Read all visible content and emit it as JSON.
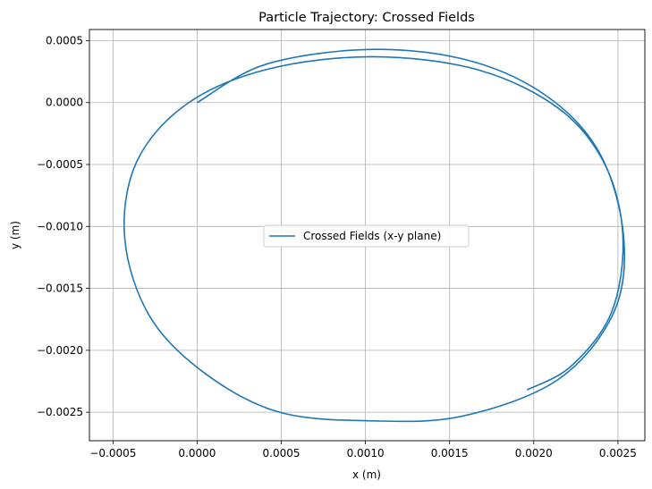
{
  "chart_data": {
    "type": "line",
    "title": "Particle Trajectory: Crossed Fields",
    "xlabel": "x (m)",
    "ylabel": "y (m)",
    "xlim": [
      -0.00064,
      0.00266
    ],
    "ylim": [
      -0.00273,
      0.00059
    ],
    "xticks": [
      -0.0005,
      0.0,
      0.0005,
      0.001,
      0.0015,
      0.002,
      0.0025
    ],
    "yticks": [
      0.0005,
      0.0,
      -0.0005,
      -0.001,
      -0.0015,
      -0.002,
      -0.0025
    ],
    "xtick_labels": [
      "−0.0005",
      "0.0000",
      "0.0005",
      "0.0010",
      "0.0015",
      "0.0020",
      "0.0025"
    ],
    "ytick_labels": [
      "0.0005",
      "0.0000",
      "−0.0005",
      "−0.0010",
      "−0.0015",
      "−0.0020",
      "−0.0025"
    ],
    "grid": true,
    "legend_position": "center",
    "series": [
      {
        "name": "Crossed Fields (x-y plane)",
        "color": "#1f77b4",
        "x": [
          0.0,
          0.00041,
          0.00105,
          0.00164,
          0.0021,
          0.0024,
          0.002535,
          0.00247,
          0.00214,
          0.00158,
          0.00105,
          0.00049,
          5e-05,
          -0.00028,
          -0.00043,
          -0.00036,
          -6e-05,
          0.00042,
          0.00105,
          0.00168,
          0.00216,
          0.00243,
          0.00253,
          0.00246,
          0.00222,
          0.00196
        ],
        "y": [
          0.0,
          0.00031,
          0.00043,
          0.00033,
          3e-05,
          -0.00043,
          -0.0011,
          -0.00171,
          -0.00224,
          -0.00253,
          -0.00257,
          -0.0025,
          -0.00219,
          -0.00173,
          -0.0011,
          -0.00048,
          -1e-05,
          0.00027,
          0.00037,
          0.00026,
          -6e-05,
          -0.00052,
          -0.0011,
          -0.0017,
          -0.00213,
          -0.00232
        ]
      }
    ]
  }
}
